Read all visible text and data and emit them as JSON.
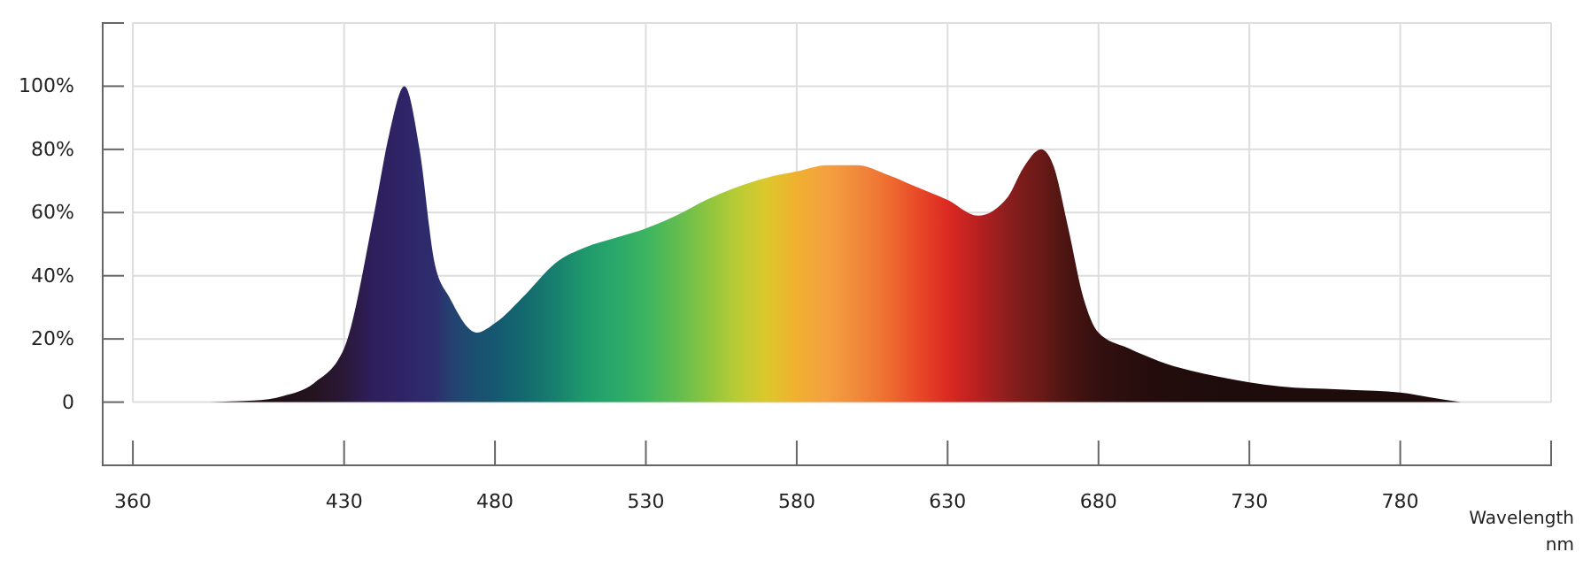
{
  "chart_data": {
    "type": "area",
    "xlabel": "Wavelength\nnm",
    "x": [
      360,
      380,
      400,
      410,
      420,
      430,
      440,
      445,
      450,
      455,
      460,
      465,
      474,
      480,
      490,
      500,
      510,
      520,
      530,
      540,
      550,
      560,
      570,
      580,
      590,
      600,
      610,
      620,
      630,
      640,
      650,
      655,
      661,
      665,
      670,
      675,
      680,
      690,
      700,
      720,
      740,
      760,
      780,
      790,
      800
    ],
    "values": [
      0,
      0,
      0.5,
      2,
      6,
      17,
      60,
      85,
      100,
      80,
      44,
      33,
      22,
      25,
      34,
      44,
      49,
      52,
      55,
      59,
      64,
      68,
      71,
      73,
      75,
      75,
      72,
      68,
      64,
      59,
      65,
      74,
      80,
      75,
      55,
      33,
      22,
      17,
      13,
      8,
      5,
      4,
      3,
      1.5,
      0
    ],
    "colors": [
      "#1a0e12",
      "#1a0e12",
      "#1a0e12",
      "#1e1016",
      "#241420",
      "#2a1838",
      "#2e1f5e",
      "#2e2262",
      "#2e2466",
      "#2e2a6c",
      "#2e2c6e",
      "#264070",
      "#1a5070",
      "#155870",
      "#146a6e",
      "#18806e",
      "#1f9a6c",
      "#2aa86a",
      "#3cb460",
      "#60bc50",
      "#8ac440",
      "#b8cc34",
      "#dcc82c",
      "#f0b030",
      "#f4a040",
      "#f08a3c",
      "#ee6e30",
      "#e84a28",
      "#dc2a22",
      "#b82020",
      "#8c1e1e",
      "#7a1c1a",
      "#6a1a18",
      "#5a1814",
      "#4a1412",
      "#3e1210",
      "#341010",
      "#2a0e0e",
      "#240c0c",
      "#1e0c0c",
      "#1e0c0c",
      "#1e0c0c",
      "#1e0c0c",
      "#1e0c0c",
      "#1e0c0c"
    ],
    "xlim": [
      350,
      830
    ],
    "xticks": [
      360,
      430,
      480,
      530,
      580,
      630,
      680,
      730,
      780
    ],
    "ylim": [
      -20,
      120
    ],
    "yticks": [
      0,
      {
        "value": 20,
        "label": "20%"
      },
      {
        "value": 40,
        "label": "40%"
      },
      {
        "value": 60,
        "label": "60%"
      },
      {
        "value": 80,
        "label": "80%"
      },
      {
        "value": 100,
        "label": "100%"
      }
    ],
    "grid": true
  }
}
